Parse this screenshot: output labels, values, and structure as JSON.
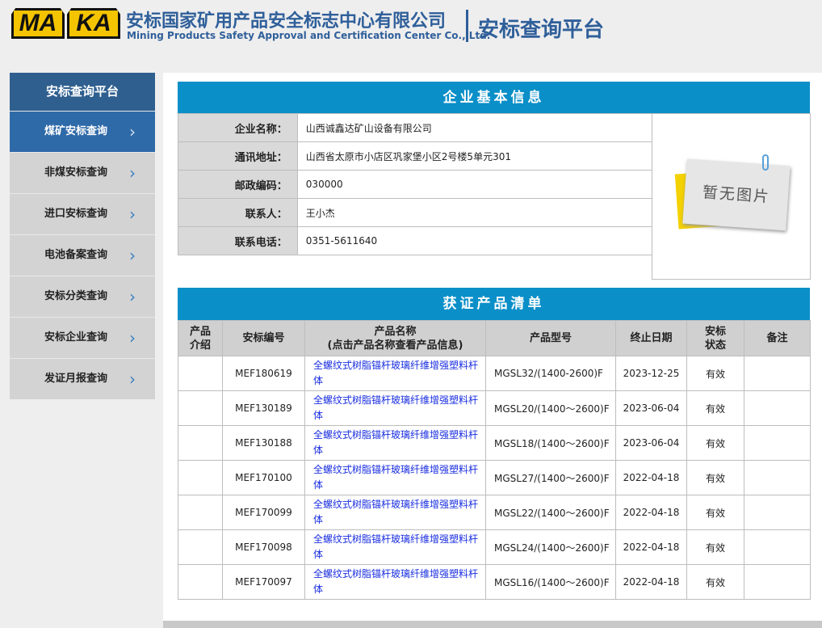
{
  "header": {
    "logo_letters": [
      "MA",
      "KA"
    ],
    "company_cn": "安标国家矿用产品安全标志中心有限公司",
    "company_en": "Mining Products Safety Approval and Certification Center Co., Ltd.",
    "platform": "安标查询平台"
  },
  "sidebar": {
    "title": "安标查询平台",
    "items": [
      {
        "label": "煤矿安标查询",
        "active": true
      },
      {
        "label": "非煤安标查询"
      },
      {
        "label": "进口安标查询"
      },
      {
        "label": "电池备案查询"
      },
      {
        "label": "安标分类查询"
      },
      {
        "label": "安标企业查询"
      },
      {
        "label": "发证月报查询"
      }
    ]
  },
  "company": {
    "title": "企业基本信息",
    "fields": [
      {
        "label": "企业名称：",
        "value": "山西诚鑫达矿山设备有限公司"
      },
      {
        "label": "通讯地址：",
        "value": "山西省太原市小店区巩家堡小区2号楼5单元301"
      },
      {
        "label": "邮政编码：",
        "value": "030000"
      },
      {
        "label": "联系人：",
        "value": "王小杰"
      },
      {
        "label": "联系电话：",
        "value": "0351-5611640"
      }
    ],
    "no_image": "暂无图片"
  },
  "products": {
    "title": "获证产品清单",
    "headers": {
      "intro": [
        "产品",
        "介绍"
      ],
      "code": "安标编号",
      "name": [
        "产品名称",
        "(点击产品名称查看产品信息)"
      ],
      "model": "产品型号",
      "end_date": "终止日期",
      "status": [
        "安标",
        "状态"
      ],
      "remark": "备注"
    },
    "rows": [
      {
        "code": "MEF180619",
        "name": "全螺纹式树脂锚杆玻璃纤维增强塑料杆体",
        "model": "MGSL32/(1400-2600)F",
        "end_date": "2023-12-25",
        "status": "有效"
      },
      {
        "code": "MEF130189",
        "name": "全螺纹式树脂锚杆玻璃纤维增强塑料杆体",
        "model": "MGSL20/(1400～2600)F",
        "end_date": "2023-06-04",
        "status": "有效"
      },
      {
        "code": "MEF130188",
        "name": "全螺纹式树脂锚杆玻璃纤维增强塑料杆体",
        "model": "MGSL18/(1400～2600)F",
        "end_date": "2023-06-04",
        "status": "有效"
      },
      {
        "code": "MEF170100",
        "name": "全螺纹式树脂锚杆玻璃纤维增强塑料杆体",
        "model": "MGSL27/(1400～2600)F",
        "end_date": "2022-04-18",
        "status": "有效"
      },
      {
        "code": "MEF170099",
        "name": "全螺纹式树脂锚杆玻璃纤维增强塑料杆体",
        "model": "MGSL22/(1400～2600)F",
        "end_date": "2022-04-18",
        "status": "有效"
      },
      {
        "code": "MEF170098",
        "name": "全螺纹式树脂锚杆玻璃纤维增强塑料杆体",
        "model": "MGSL24/(1400～2600)F",
        "end_date": "2022-04-18",
        "status": "有效"
      },
      {
        "code": "MEF170097",
        "name": "全螺纹式树脂锚杆玻璃纤维增强塑料杆体",
        "model": "MGSL16/(1400～2600)F",
        "end_date": "2022-04-18",
        "status": "有效"
      }
    ]
  },
  "colors": {
    "brand_blue": "#2f5f9a",
    "section_header": "#0a8fc8",
    "link": "#1a2ee0",
    "logo_yellow": "#f5c400"
  }
}
